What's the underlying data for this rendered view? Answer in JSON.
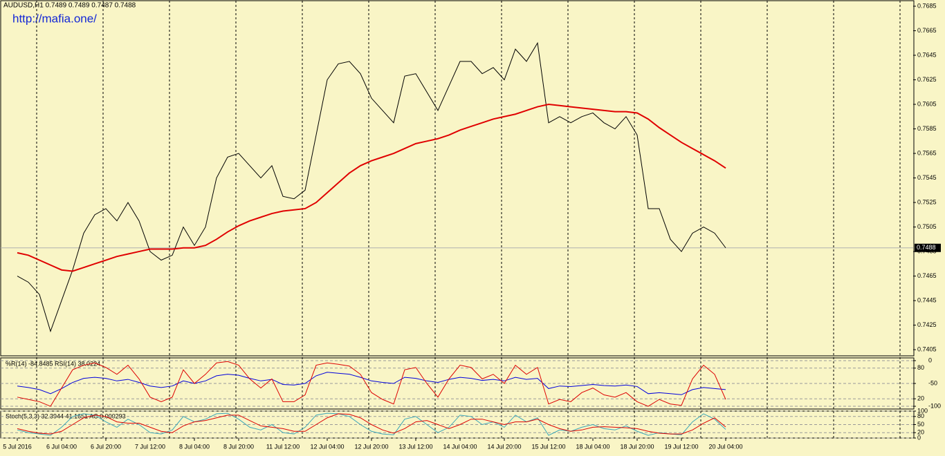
{
  "chart_data": [
    {
      "type": "line",
      "title": "AUDUSD,H1  0.7489 0.7489 0.7487 0.7488",
      "annotation": "http://mafia.one/",
      "categories": [
        "5 Jul 2016",
        null,
        null,
        null,
        "6 Jul 04:00",
        null,
        null,
        null,
        "6 Jul 20:00",
        null,
        null,
        null,
        "7 Jul 12:00",
        null,
        null,
        null,
        "8 Jul 04:00",
        null,
        null,
        null,
        "8 Jul 20:00",
        null,
        null,
        null,
        "11 Jul 12:00",
        null,
        null,
        null,
        "12 Jul 04:00",
        null,
        null,
        null,
        "12 Jul 20:00",
        null,
        null,
        null,
        "13 Jul 12:00",
        null,
        null,
        null,
        "14 Jul 04:00",
        null,
        null,
        null,
        "14 Jul 20:00",
        null,
        null,
        null,
        "15 Jul 12:00",
        null,
        null,
        null,
        "18 Jul 04:00",
        null,
        null,
        null,
        "18 Jul 20:00",
        null,
        null,
        null,
        "19 Jul 12:00",
        null,
        null,
        null,
        "20 Jul 04:00"
      ],
      "series": [
        {
          "color": "#000000",
          "values": [
            0.7465,
            0.746,
            0.745,
            0.742,
            0.7445,
            0.747,
            0.75,
            0.7515,
            0.752,
            0.751,
            0.7525,
            0.751,
            0.7485,
            0.7478,
            0.7482,
            0.7505,
            0.749,
            0.7505,
            0.7545,
            0.7562,
            0.7565,
            0.7555,
            0.7545,
            0.7555,
            0.753,
            0.7528,
            0.7535,
            0.758,
            0.7625,
            0.7638,
            0.764,
            0.763,
            0.761,
            0.76,
            0.759,
            0.7628,
            0.763,
            0.7615,
            0.76,
            0.762,
            0.764,
            0.764,
            0.763,
            0.7635,
            0.7625,
            0.765,
            0.764,
            0.7655,
            0.759,
            0.7595,
            0.759,
            0.7595,
            0.7598,
            0.759,
            0.7585,
            0.7595,
            0.758,
            0.752,
            0.752,
            0.7495,
            0.7485,
            0.75,
            0.7505,
            0.75,
            0.7488
          ]
        },
        {
          "color": "#e00000",
          "values": [
            0.7484,
            0.7482,
            0.7478,
            0.7474,
            0.747,
            0.7469,
            0.7472,
            0.7475,
            0.7478,
            0.7481,
            0.7483,
            0.7485,
            0.7487,
            0.7487,
            0.7487,
            0.7488,
            0.7488,
            0.749,
            0.7495,
            0.7501,
            0.7506,
            0.751,
            0.7513,
            0.7516,
            0.7518,
            0.7519,
            0.752,
            0.7525,
            0.7533,
            0.7541,
            0.7549,
            0.7555,
            0.7559,
            0.7562,
            0.7565,
            0.7569,
            0.7573,
            0.7575,
            0.7577,
            0.758,
            0.7584,
            0.7587,
            0.759,
            0.7593,
            0.7595,
            0.7597,
            0.76,
            0.7603,
            0.7605,
            0.7604,
            0.7603,
            0.7602,
            0.7601,
            0.76,
            0.7599,
            0.7599,
            0.7598,
            0.7593,
            0.7586,
            0.758,
            0.7574,
            0.7569,
            0.7564,
            0.7559,
            0.7553
          ]
        }
      ],
      "last_price": 0.7488,
      "ylim": [
        0.74,
        0.76895
      ],
      "yticks": [
        0.7685,
        0.7665,
        0.7645,
        0.7625,
        0.7605,
        0.7585,
        0.7565,
        0.7545,
        0.7525,
        0.7505,
        0.7485,
        0.7465,
        0.7445,
        0.7425,
        0.7405
      ]
    },
    {
      "type": "line",
      "title": "%R(14) -84.8485  RSI(14) 38.0224",
      "series": [
        {
          "color": "#0000dd",
          "values": [
            45,
            42,
            38,
            30,
            40,
            52,
            60,
            62,
            60,
            55,
            58,
            52,
            45,
            42,
            45,
            55,
            50,
            55,
            65,
            68,
            66,
            60,
            55,
            58,
            48,
            47,
            50,
            65,
            72,
            70,
            68,
            62,
            55,
            52,
            50,
            62,
            60,
            55,
            52,
            58,
            62,
            60,
            56,
            58,
            55,
            62,
            58,
            60,
            40,
            45,
            44,
            46,
            48,
            46,
            45,
            47,
            44,
            30,
            32,
            30,
            28,
            38,
            42,
            40,
            38
          ]
        },
        {
          "color": "#dd0000",
          "axis": "y2",
          "values": [
            -80,
            -85,
            -90,
            -100,
            -60,
            -20,
            -10,
            -5,
            -15,
            -30,
            -10,
            -40,
            -80,
            -90,
            -80,
            -20,
            -50,
            -30,
            -5,
            -2,
            -10,
            -40,
            -60,
            -40,
            -90,
            -90,
            -75,
            -10,
            -5,
            -8,
            -12,
            -30,
            -70,
            -85,
            -95,
            -20,
            -15,
            -50,
            -80,
            -40,
            -10,
            -15,
            -40,
            -30,
            -50,
            -10,
            -30,
            -15,
            -95,
            -85,
            -90,
            -70,
            -60,
            -75,
            -80,
            -70,
            -90,
            -100,
            -85,
            -95,
            -98,
            -40,
            -10,
            -30,
            -85
          ]
        }
      ],
      "ylim": [
        0,
        100
      ],
      "yticks": [
        20,
        80
      ],
      "y2lim": [
        -106,
        6
      ],
      "y2ticks": [
        -100,
        -50,
        0
      ]
    },
    {
      "type": "line",
      "title": "Stoch(5,3,3) 32.3944 41.1651 AC 0.000293",
      "series": [
        {
          "color": "#3aa6b8",
          "values": [
            30,
            20,
            15,
            10,
            40,
            80,
            90,
            85,
            60,
            40,
            70,
            50,
            20,
            15,
            30,
            80,
            60,
            70,
            90,
            92,
            70,
            40,
            30,
            50,
            20,
            15,
            40,
            85,
            92,
            90,
            80,
            50,
            25,
            15,
            12,
            70,
            80,
            50,
            20,
            40,
            85,
            80,
            50,
            60,
            40,
            85,
            60,
            75,
            10,
            30,
            25,
            40,
            50,
            35,
            30,
            45,
            25,
            10,
            20,
            15,
            12,
            60,
            90,
            70,
            32
          ]
        },
        {
          "color": "#dd0000",
          "values": [
            35,
            25,
            18,
            15,
            25,
            50,
            75,
            85,
            80,
            60,
            55,
            55,
            40,
            25,
            20,
            45,
            60,
            65,
            75,
            85,
            85,
            65,
            45,
            40,
            35,
            25,
            25,
            50,
            75,
            90,
            88,
            75,
            50,
            30,
            18,
            35,
            60,
            65,
            50,
            35,
            50,
            70,
            70,
            60,
            50,
            60,
            60,
            70,
            50,
            35,
            25,
            30,
            40,
            42,
            40,
            38,
            35,
            25,
            18,
            15,
            15,
            30,
            55,
            75,
            41
          ]
        }
      ],
      "ylim": [
        0,
        100
      ],
      "yticks": [
        0,
        20,
        50,
        80,
        100
      ]
    }
  ]
}
